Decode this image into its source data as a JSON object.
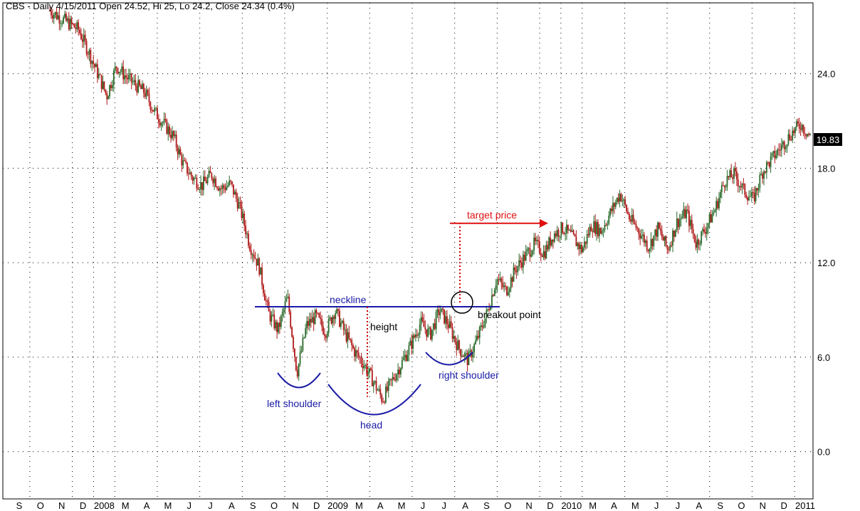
{
  "chart_data": {
    "type": "candlestick",
    "title": "CBS - Daily 4/15/2011 Open 24.52, Hi 25, Lo 24.2, Close 24.34 (0.4%)",
    "last_price_label": "19.83",
    "ylim": [
      -3,
      28.5
    ],
    "y_ticks": [
      {
        "value": 24,
        "label": "24.0"
      },
      {
        "value": 18,
        "label": "18.0"
      },
      {
        "value": 12,
        "label": "12.0"
      },
      {
        "value": 6,
        "label": "6.0"
      },
      {
        "value": 0,
        "label": "0.0"
      }
    ],
    "grid": true,
    "x_labels": [
      "S",
      "O",
      "N",
      "D",
      "2008",
      "M",
      "A",
      "M",
      "J",
      "J",
      "A",
      "S",
      "O",
      "N",
      "D",
      "2009",
      "M",
      "A",
      "M",
      "J",
      "J",
      "A",
      "S",
      "O",
      "N",
      "D",
      "2010",
      "M",
      "A",
      "M",
      "J",
      "J",
      "A",
      "S",
      "O",
      "N",
      "D",
      "2011"
    ],
    "price_path": [
      [
        0,
        28.0
      ],
      [
        3,
        26.8
      ],
      [
        4,
        25.5
      ],
      [
        6,
        22.6
      ],
      [
        7,
        24.5
      ],
      [
        8,
        23.8
      ],
      [
        10,
        22.8
      ],
      [
        11,
        21.6
      ],
      [
        13,
        20.0
      ],
      [
        14,
        18.3
      ],
      [
        15,
        17.4
      ],
      [
        16,
        16.9
      ],
      [
        17,
        17.6
      ],
      [
        18,
        16.7
      ],
      [
        19,
        17.0
      ],
      [
        20,
        15.5
      ],
      [
        21,
        13.2
      ],
      [
        22,
        11.8
      ],
      [
        23,
        8.8
      ],
      [
        24,
        7.7
      ],
      [
        25,
        9.8
      ],
      [
        26,
        5.0
      ],
      [
        27,
        8.0
      ],
      [
        28,
        8.6
      ],
      [
        29,
        7.6
      ],
      [
        30,
        9.0
      ],
      [
        31,
        7.6
      ],
      [
        32,
        6.4
      ],
      [
        33,
        5.6
      ],
      [
        34,
        4.5
      ],
      [
        35,
        3.3
      ],
      [
        36,
        4.5
      ],
      [
        37,
        5.6
      ],
      [
        38,
        6.8
      ],
      [
        39,
        8.2
      ],
      [
        40,
        7.4
      ],
      [
        41,
        9.0
      ],
      [
        42,
        8.0
      ],
      [
        43,
        6.6
      ],
      [
        44,
        5.8
      ],
      [
        45,
        7.2
      ],
      [
        46,
        8.8
      ],
      [
        47,
        11.0
      ],
      [
        48,
        10.2
      ],
      [
        49,
        11.6
      ],
      [
        50,
        12.4
      ],
      [
        51,
        13.2
      ],
      [
        52,
        12.6
      ],
      [
        53,
        13.8
      ],
      [
        54,
        14.2
      ],
      [
        55,
        13.6
      ],
      [
        56,
        12.8
      ],
      [
        57,
        14.4
      ],
      [
        58,
        14.0
      ],
      [
        59,
        15.2
      ],
      [
        60,
        16.4
      ],
      [
        61,
        14.8
      ],
      [
        62,
        14.0
      ],
      [
        63,
        13.0
      ],
      [
        64,
        14.2
      ],
      [
        65,
        12.8
      ],
      [
        66,
        14.6
      ],
      [
        67,
        15.2
      ],
      [
        68,
        13.2
      ],
      [
        69,
        14.2
      ],
      [
        70,
        15.4
      ],
      [
        71,
        17.2
      ],
      [
        72,
        17.6
      ],
      [
        73,
        16.6
      ],
      [
        74,
        16.0
      ],
      [
        75,
        17.8
      ],
      [
        76,
        18.6
      ],
      [
        77,
        19.4
      ],
      [
        78,
        20.2
      ],
      [
        79,
        20.8
      ],
      [
        80,
        20.0
      ]
    ],
    "annotations": {
      "neckline_level": 9.2,
      "neckline_label": "neckline",
      "height_label": "height",
      "left_shoulder_label": "left shoulder",
      "head_label": "head",
      "right_shoulder_label": "right shoulder",
      "breakout_label": "breakout point",
      "target_label": "target price",
      "target_level": 14.5,
      "head_low": 3.3
    },
    "colors": {
      "up": "#2a6a2a",
      "down": "#b01818",
      "neckline": "#1a1aa6",
      "target": "#e01010",
      "grid": "#000000"
    }
  }
}
